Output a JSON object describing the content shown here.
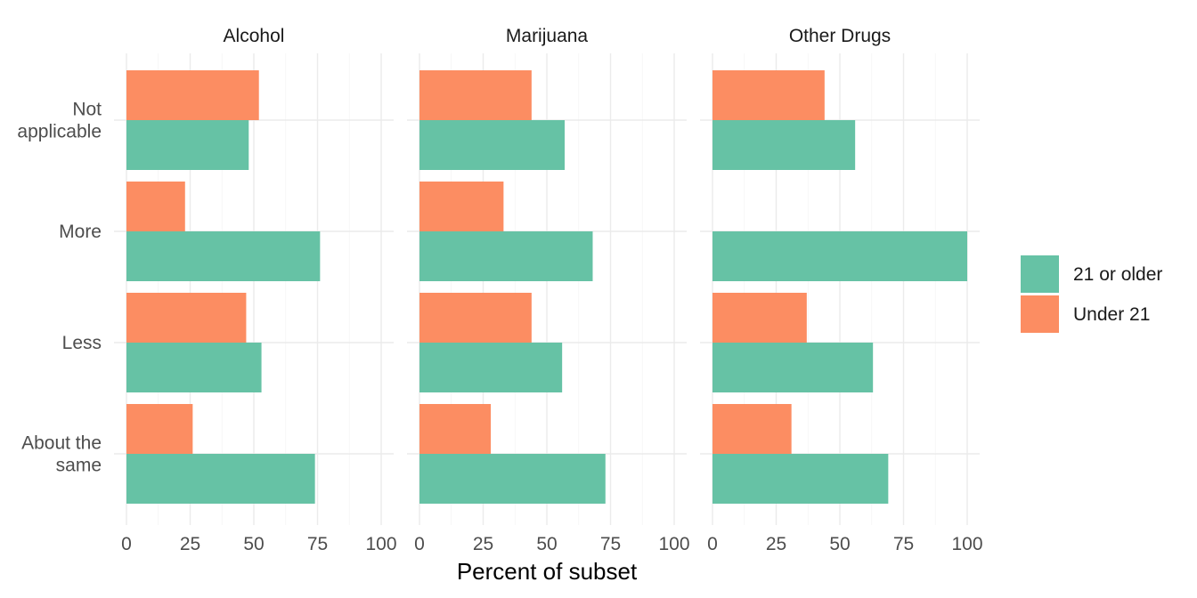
{
  "chart_data": {
    "type": "bar",
    "orientation": "horizontal",
    "facet_by": "substance",
    "panels": [
      "Alcohol",
      "Marijuana",
      "Other Drugs"
    ],
    "categories": [
      "Not\napplicable",
      "More",
      "Less",
      "About the\nsame"
    ],
    "series": [
      {
        "name": "21 or older",
        "color": "#66c2a5",
        "values": {
          "Alcohol": [
            48,
            76,
            53,
            74
          ],
          "Marijuana": [
            57,
            68,
            56,
            73
          ],
          "Other Drugs": [
            56,
            100,
            63,
            69
          ]
        }
      },
      {
        "name": "Under 21",
        "color": "#fc8d62",
        "values": {
          "Alcohol": [
            52,
            23,
            47,
            26
          ],
          "Marijuana": [
            44,
            33,
            44,
            28
          ],
          "Other Drugs": [
            44,
            0,
            37,
            31
          ]
        }
      }
    ],
    "xlabel": "Percent of subset",
    "ylabel": "",
    "xlim": [
      0,
      100
    ],
    "xticks": [
      0,
      25,
      50,
      75,
      100
    ],
    "grid": true,
    "legend_position": "right"
  }
}
